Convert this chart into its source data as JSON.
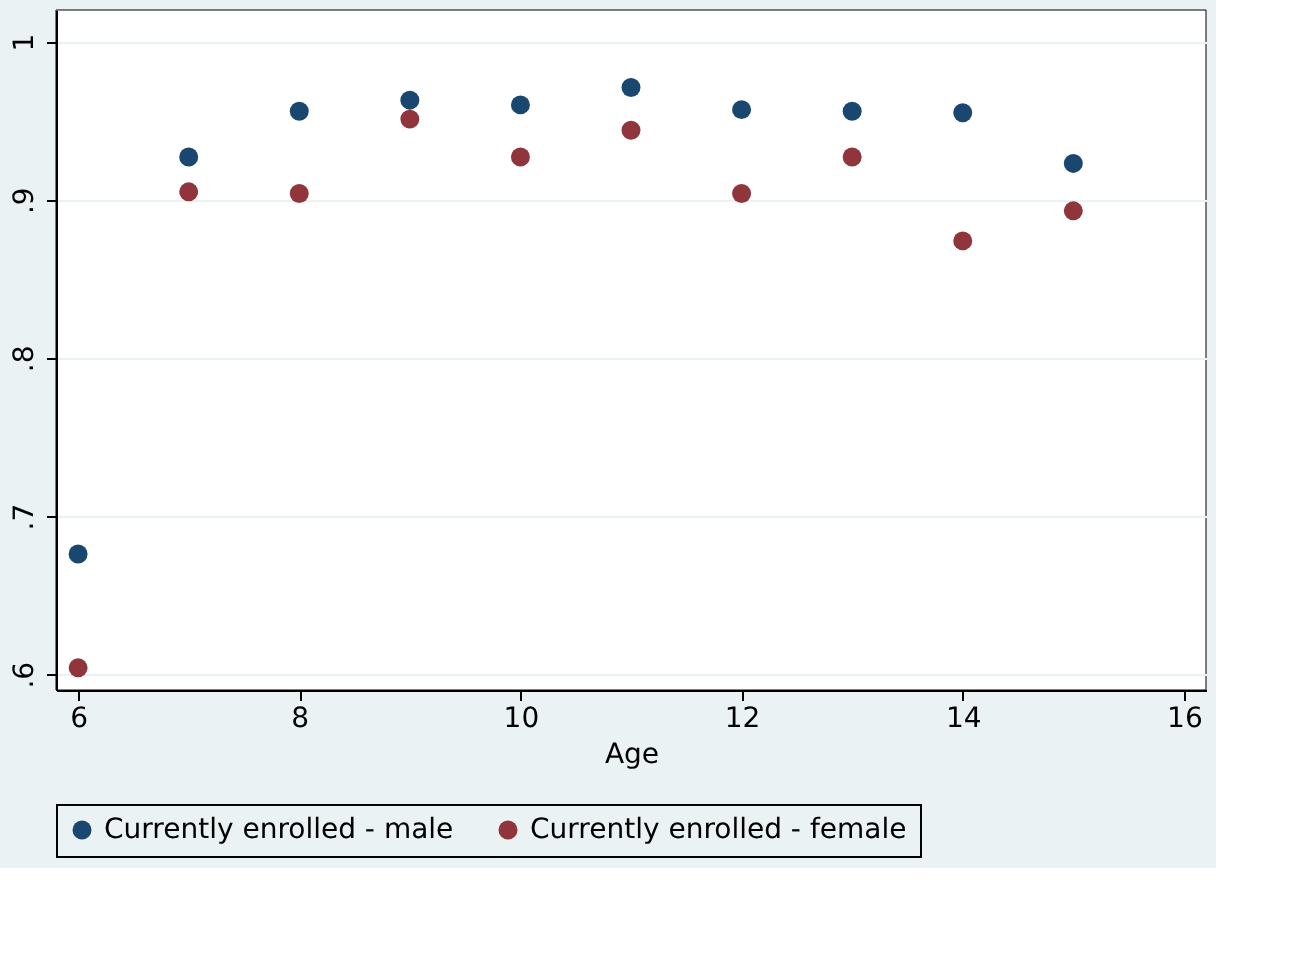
{
  "chart_data": {
    "type": "scatter",
    "xlabel": "Age",
    "x": [
      6,
      7,
      8,
      9,
      10,
      11,
      12,
      13,
      14,
      15
    ],
    "series": [
      {
        "name": "Currently enrolled - male",
        "color": "#1a476f",
        "values": [
          0.676,
          0.927,
          0.956,
          0.963,
          0.96,
          0.971,
          0.957,
          0.956,
          0.955,
          0.923
        ]
      },
      {
        "name": "Currently enrolled - female",
        "color": "#90353b",
        "values": [
          0.604,
          0.905,
          0.904,
          0.951,
          0.927,
          0.944,
          0.904,
          0.927,
          0.874,
          0.893
        ]
      }
    ],
    "xlim": [
      5.8,
      16.2
    ],
    "xticks": [
      6,
      8,
      10,
      12,
      14,
      16
    ],
    "ylim": [
      0.59,
      1.02
    ],
    "yticks": [
      {
        "value": 0.6,
        "label": ".6"
      },
      {
        "value": 0.7,
        "label": ".7"
      },
      {
        "value": 0.8,
        "label": ".8"
      },
      {
        "value": 0.9,
        "label": ".9"
      },
      {
        "value": 1,
        "label": "1"
      }
    ],
    "grid": "y",
    "legend": "bottom",
    "marker": "circle"
  }
}
